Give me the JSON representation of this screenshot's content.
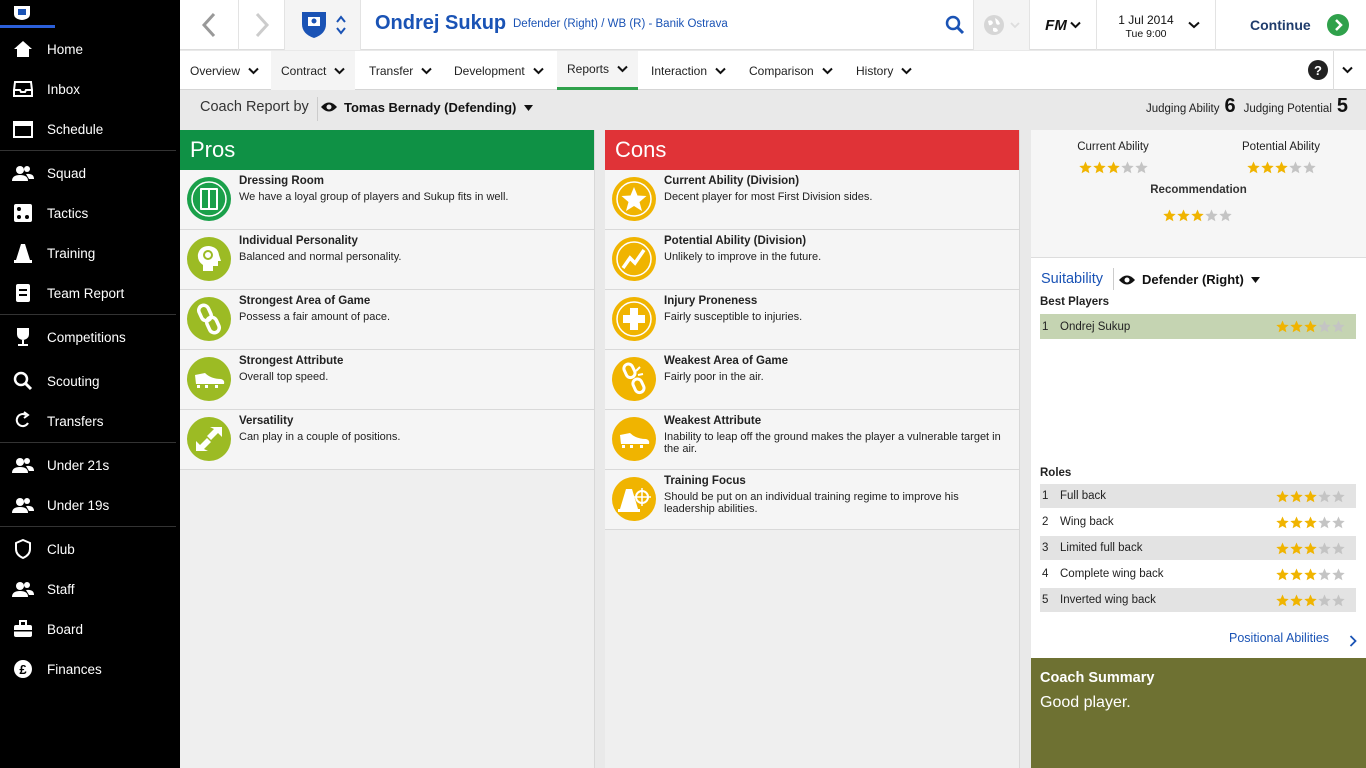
{
  "sidebar": {
    "items": [
      {
        "label": "Home",
        "icon": "home-icon"
      },
      {
        "label": "Inbox",
        "icon": "inbox-icon"
      },
      {
        "label": "Schedule",
        "icon": "calendar-icon"
      },
      {
        "label": "Squad",
        "icon": "people-icon"
      },
      {
        "label": "Tactics",
        "icon": "tactics-icon"
      },
      {
        "label": "Training",
        "icon": "cone-icon"
      },
      {
        "label": "Team Report",
        "icon": "report-icon"
      },
      {
        "label": "Competitions",
        "icon": "trophy-icon"
      },
      {
        "label": "Scouting",
        "icon": "search-icon"
      },
      {
        "label": "Transfers",
        "icon": "transfer-icon"
      },
      {
        "label": "Under 21s",
        "icon": "people-icon"
      },
      {
        "label": "Under 19s",
        "icon": "people-icon"
      },
      {
        "label": "Club",
        "icon": "shield-icon"
      },
      {
        "label": "Staff",
        "icon": "people-icon"
      },
      {
        "label": "Board",
        "icon": "briefcase-icon"
      },
      {
        "label": "Finances",
        "icon": "pound-icon"
      }
    ]
  },
  "header": {
    "player_name": "Ondrej Sukup",
    "player_desc": "Defender (Right) / WB (R) - Banik Ostrava",
    "date": "1 Jul 2014",
    "time": "Tue 9:00",
    "continue_label": "Continue",
    "fm_label": "FM"
  },
  "tabs": [
    {
      "label": "Overview",
      "active": false
    },
    {
      "label": "Contract",
      "active": false
    },
    {
      "label": "Transfer",
      "active": false
    },
    {
      "label": "Development",
      "active": false
    },
    {
      "label": "Reports",
      "active": true
    },
    {
      "label": "Interaction",
      "active": false
    },
    {
      "label": "Comparison",
      "active": false
    },
    {
      "label": "History",
      "active": false
    }
  ],
  "report": {
    "coach_by_label": "Coach Report by",
    "coach_name": "Tomas Bernady (Defending)",
    "judging_ability_label": "Judging Ability",
    "judging_ability": "6",
    "judging_potential_label": "Judging Potential",
    "judging_potential": "5"
  },
  "pros": {
    "title": "Pros",
    "color": "#0f9145",
    "items": [
      {
        "title": "Dressing Room",
        "desc": "We have a loyal group of players and Sukup fits in well.",
        "icon": "locker-icon",
        "color": "#1aa04a"
      },
      {
        "title": "Individual Personality",
        "desc": "Balanced and normal personality.",
        "icon": "head-icon",
        "color": "#9cbb24"
      },
      {
        "title": "Strongest Area of Game",
        "desc": "Possess a fair amount of pace.",
        "icon": "chain-icon",
        "color": "#9cbb24"
      },
      {
        "title": "Strongest Attribute",
        "desc": "Overall top speed.",
        "icon": "boot-icon",
        "color": "#9cbb24"
      },
      {
        "title": "Versatility",
        "desc": "Can play in a couple of positions.",
        "icon": "arrows-icon",
        "color": "#9cbb24"
      }
    ]
  },
  "cons": {
    "title": "Cons",
    "color": "#e03337",
    "items": [
      {
        "title": "Current Ability (Division)",
        "desc": "Decent player for most First Division sides.",
        "icon": "star-icon",
        "color": "#f0b400"
      },
      {
        "title": "Potential Ability (Division)",
        "desc": "Unlikely to improve in the future.",
        "icon": "graph-icon",
        "color": "#f0b400"
      },
      {
        "title": "Injury Proneness",
        "desc": "Fairly susceptible to injuries.",
        "icon": "cross-icon",
        "color": "#f0b400"
      },
      {
        "title": "Weakest Area of Game",
        "desc": "Fairly poor in the air.",
        "icon": "broken-chain-icon",
        "color": "#f0b400"
      },
      {
        "title": "Weakest Attribute",
        "desc": "Inability to leap off the ground makes the player a vulnerable target in the air.",
        "icon": "boot-icon",
        "color": "#f0b400"
      },
      {
        "title": "Training Focus",
        "desc": "Should be put on an individual training regime to improve his leadership abilities.",
        "icon": "training-icon",
        "color": "#f0b400"
      }
    ]
  },
  "abilities": {
    "current_label": "Current Ability",
    "current_stars": 3,
    "potential_label": "Potential Ability",
    "potential_stars": 3,
    "recommendation_label": "Recommendation",
    "recommendation_stars": 3
  },
  "suitability": {
    "label": "Suitability",
    "position": "Defender (Right)",
    "best_players_label": "Best Players",
    "best_players": [
      {
        "num": "1",
        "name": "Ondrej Sukup",
        "stars": 3
      }
    ],
    "roles_label": "Roles",
    "roles": [
      {
        "num": "1",
        "name": "Full back",
        "stars": 3
      },
      {
        "num": "2",
        "name": "Wing back",
        "stars": 3
      },
      {
        "num": "3",
        "name": "Limited full back",
        "stars": 3
      },
      {
        "num": "4",
        "name": "Complete wing back",
        "stars": 3
      },
      {
        "num": "5",
        "name": "Inverted wing back",
        "stars": 3
      }
    ],
    "positional_abilities_link": "Positional Abilities"
  },
  "coach_summary": {
    "title": "Coach Summary",
    "text": "Good player."
  },
  "colors": {
    "accent_blue": "#1a53b5",
    "star_gold": "#f0b400",
    "star_grey": "#c4c4c4",
    "summary_bg": "#6e7132",
    "continue_green": "#2fa14b"
  }
}
